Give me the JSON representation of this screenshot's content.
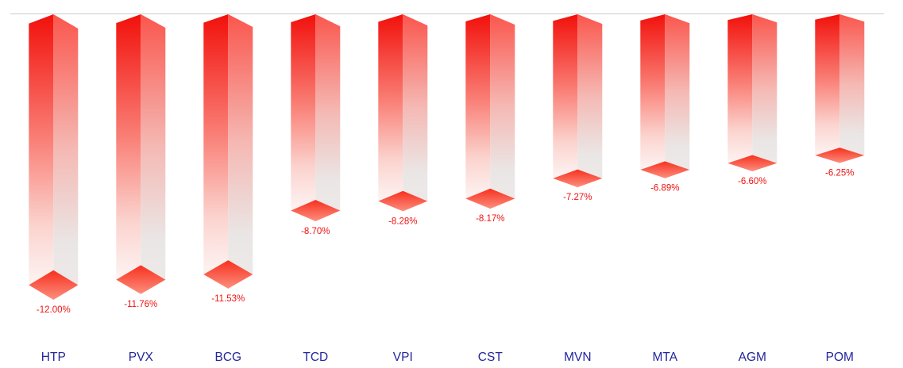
{
  "chart": {
    "background": "#ffffff",
    "axis_line_color": "#cccccc",
    "value_label_color": "#ee1312",
    "category_label_color": "#23269b",
    "bar_colors": {
      "left_face": [
        "#f2100b",
        "#f97c73",
        "#fbd3ce",
        "#fdf4f3"
      ],
      "right_face": [
        "#fa564d",
        "#f5b9b4",
        "#eae6e5",
        "#ece9e8"
      ],
      "bottom_diamond": [
        "#f7301e",
        "#fc8f7f"
      ]
    }
  },
  "chart_data": {
    "type": "bar",
    "style": "3d-columns-hanging-below-zero-line",
    "title": "",
    "xlabel": "",
    "ylabel": "",
    "legend": "none",
    "grid": "off",
    "baseline": 0,
    "ylim": [
      -12.5,
      0
    ],
    "categories": [
      "HTP",
      "PVX",
      "BCG",
      "TCD",
      "VPI",
      "CST",
      "MVN",
      "MTA",
      "AGM",
      "POM"
    ],
    "series": [
      {
        "name": "percent-change",
        "values": [
          -12.0,
          -11.76,
          -11.53,
          -8.7,
          -8.28,
          -8.17,
          -7.27,
          -6.89,
          -6.6,
          -6.25
        ]
      }
    ],
    "data_labels": [
      "-12.00%",
      "-11.76%",
      "-11.53%",
      "-8.70%",
      "-8.28%",
      "-8.17%",
      "-7.27%",
      "-6.89%",
      "-6.60%",
      "-6.25%"
    ]
  }
}
